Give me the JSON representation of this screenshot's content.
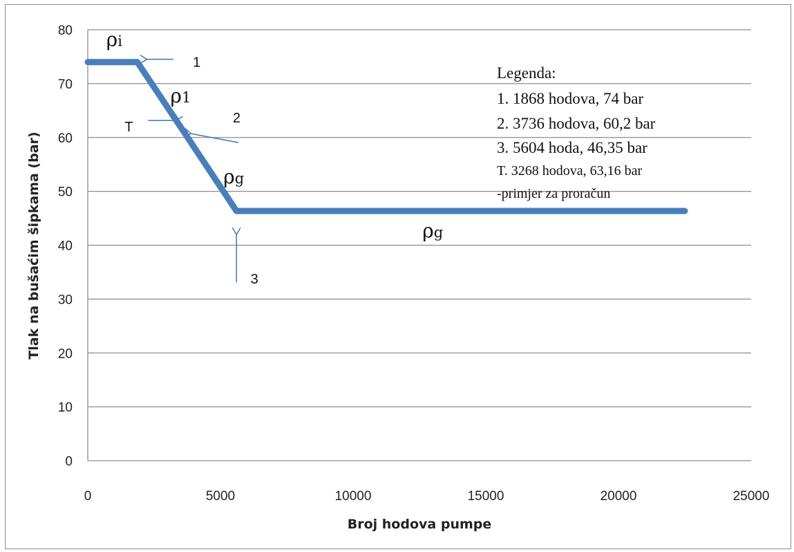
{
  "chart_data": {
    "type": "line",
    "title": "",
    "xlabel": "Broj hodova pumpe",
    "ylabel": "Tlak na bušaćim šipkama (bar)",
    "xlim": [
      0,
      25000
    ],
    "ylim": [
      0,
      80
    ],
    "xticks": [
      "0",
      "5000",
      "10000",
      "15000",
      "20000",
      "25000"
    ],
    "yticks": [
      "0",
      "10",
      "20",
      "30",
      "40",
      "50",
      "60",
      "70",
      "80"
    ],
    "grid": "horizontal",
    "series": [
      {
        "name": "",
        "color": "#4a7ebb",
        "x": [
          0,
          1868,
          3736,
          5604,
          22500
        ],
        "y": [
          74,
          74,
          60.2,
          46.35,
          46.35
        ]
      }
    ],
    "density_labels": [
      {
        "base": "ρ",
        "sub": "i",
        "x": 1000,
        "y": 77
      },
      {
        "base": "ρ",
        "sub": "1",
        "x": 3500,
        "y": 66.5
      },
      {
        "base": "ρ",
        "sub": "g",
        "x": 5500,
        "y": 51.5
      },
      {
        "base": "ρ",
        "sub": "g",
        "x": 13000,
        "y": 41.5
      }
    ],
    "markers": [
      {
        "label": "1",
        "x": 1868,
        "y": 74
      },
      {
        "label": "2",
        "x": 3736,
        "y": 60.2
      },
      {
        "label": "3",
        "x": 5604,
        "y": 46.35
      },
      {
        "label": "T",
        "x": 3268,
        "y": 63.16
      }
    ],
    "legend": {
      "title": "Legenda:",
      "items": [
        "1. 1868 hodova, 74 bar",
        "2. 3736 hodova, 60,2 bar",
        "3. 5604 hoda, 46,35 bar",
        "T. 3268 hodova, 63,16 bar",
        "-primjer za proračun"
      ]
    },
    "colors": {
      "line": "#4a7ebb",
      "arrow": "#4a7ebb",
      "grid": "#8c8c8c"
    }
  }
}
